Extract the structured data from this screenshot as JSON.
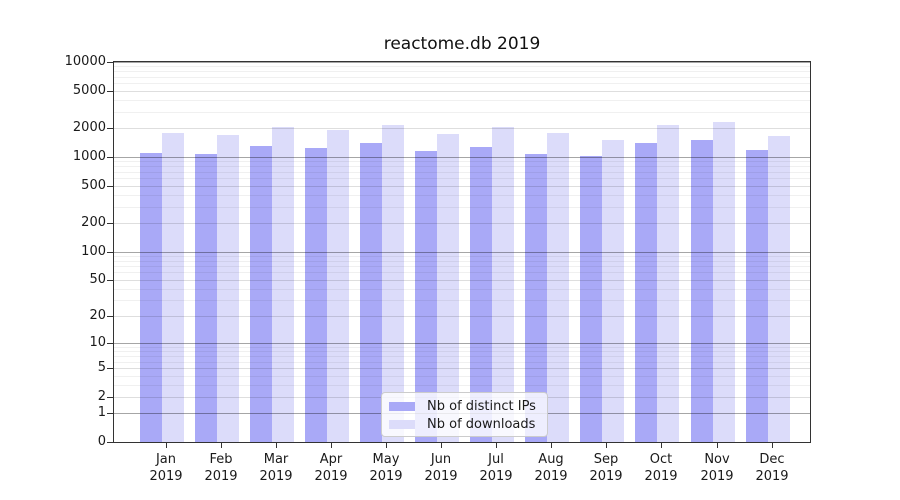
{
  "chart_data": {
    "type": "bar",
    "title": "reactome.db 2019",
    "categories": [
      "Jan 2019",
      "Feb 2019",
      "Mar 2019",
      "Apr 2019",
      "May 2019",
      "Jun 2019",
      "Jul 2019",
      "Aug 2019",
      "Sep 2019",
      "Oct 2019",
      "Nov 2019",
      "Dec 2019"
    ],
    "x_tick_months": [
      "Jan",
      "Feb",
      "Mar",
      "Apr",
      "May",
      "Jun",
      "Jul",
      "Aug",
      "Sep",
      "Oct",
      "Nov",
      "Dec"
    ],
    "x_tick_year": "2019",
    "series": [
      {
        "name": "Nb of distinct IPs",
        "color": "#a9a9f7",
        "values": [
          1100,
          1070,
          1300,
          1240,
          1400,
          1150,
          1270,
          1070,
          1020,
          1400,
          1500,
          1180
        ]
      },
      {
        "name": "Nb of downloads",
        "color": "#dcdcfa",
        "values": [
          1780,
          1690,
          2050,
          1930,
          2150,
          1750,
          2050,
          1780,
          1500,
          2150,
          2320,
          1650
        ]
      }
    ],
    "y_axis": {
      "scale": "log1p",
      "ticks": [
        0,
        1,
        2,
        5,
        10,
        20,
        50,
        100,
        200,
        500,
        1000,
        2000,
        5000,
        10000
      ],
      "range": [
        0,
        10000
      ]
    },
    "grid": "on",
    "legend_position": "bottom-center"
  }
}
